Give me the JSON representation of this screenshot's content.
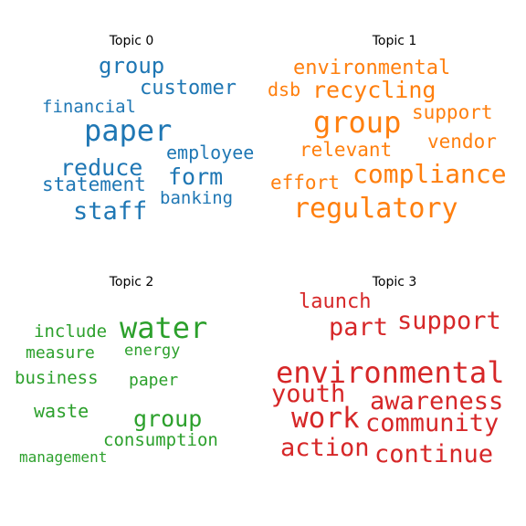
{
  "topics": [
    {
      "title": "Topic 0",
      "color": "#1f77b4",
      "words": [
        "group",
        "customer",
        "financial",
        "paper",
        "employee",
        "reduce",
        "form",
        "statement",
        "banking",
        "staff"
      ]
    },
    {
      "title": "Topic 1",
      "color": "#ff7f0e",
      "words": [
        "environmental",
        "dsb",
        "recycling",
        "group",
        "support",
        "relevant",
        "vendor",
        "compliance",
        "effort",
        "regulatory"
      ]
    },
    {
      "title": "Topic 2",
      "color": "#2ca02c",
      "words": [
        "water",
        "include",
        "measure",
        "energy",
        "business",
        "paper",
        "waste",
        "group",
        "consumption",
        "management"
      ]
    },
    {
      "title": "Topic 3",
      "color": "#d62728",
      "words": [
        "launch",
        "support",
        "part",
        "environmental",
        "youth",
        "awareness",
        "work",
        "community",
        "action",
        "continue"
      ]
    }
  ]
}
